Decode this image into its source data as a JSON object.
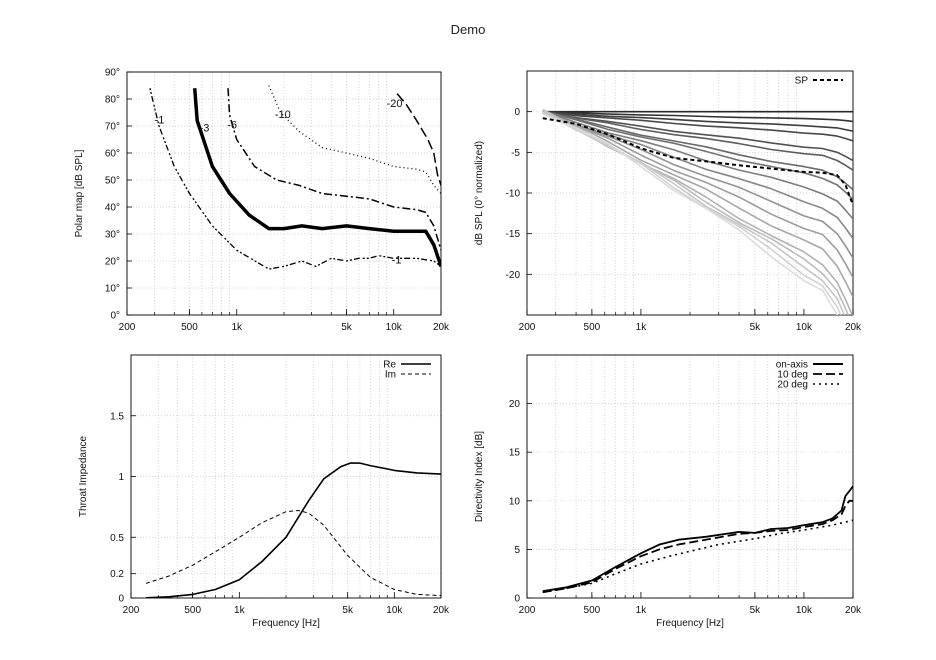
{
  "title": "Demo",
  "charts": [
    {
      "id": "polar-map",
      "type": "contour",
      "xscale": "log",
      "xlim": [
        200,
        20000
      ],
      "ylim": [
        0,
        90
      ],
      "xticks": [
        {
          "v": 200,
          "label": "200"
        },
        {
          "v": 500,
          "label": "500"
        },
        {
          "v": 1000,
          "label": "1k"
        },
        {
          "v": 5000,
          "label": "5k"
        },
        {
          "v": 10000,
          "label": "10k"
        },
        {
          "v": 20000,
          "label": "20k"
        }
      ],
      "yticks": [
        {
          "v": 0,
          "label": "0°"
        },
        {
          "v": 10,
          "label": "10°"
        },
        {
          "v": 20,
          "label": "20°"
        },
        {
          "v": 30,
          "label": "30°"
        },
        {
          "v": 40,
          "label": "40°"
        },
        {
          "v": 50,
          "label": "50°"
        },
        {
          "v": 60,
          "label": "60°"
        },
        {
          "v": 70,
          "label": "70°"
        },
        {
          "v": 80,
          "label": "80°"
        },
        {
          "v": 90,
          "label": "90°"
        }
      ],
      "xlabel": "",
      "ylabel": "Polar map [dB SPL]",
      "series": [
        {
          "name": "-1",
          "dash": "2,2,2,2,6,3",
          "width": 1.3,
          "color": "#000",
          "points": [
            [
              280,
              84
            ],
            [
              320,
              70
            ],
            [
              400,
              55
            ],
            [
              500,
              45
            ],
            [
              700,
              33
            ],
            [
              1000,
              24
            ],
            [
              1600,
              17
            ],
            [
              2000,
              18
            ],
            [
              2600,
              20
            ],
            [
              3200,
              18
            ],
            [
              4000,
              21
            ],
            [
              5000,
              20
            ],
            [
              6000,
              21
            ],
            [
              7000,
              21
            ],
            [
              8000,
              22
            ],
            [
              10000,
              21
            ],
            [
              14000,
              21
            ],
            [
              18000,
              20
            ],
            [
              20000,
              18
            ]
          ]
        },
        {
          "name": "-3",
          "dash": "",
          "width": 3.5,
          "color": "#000",
          "points": [
            [
              540,
              84
            ],
            [
              560,
              72
            ],
            [
              700,
              55
            ],
            [
              900,
              45
            ],
            [
              1200,
              37
            ],
            [
              1600,
              32
            ],
            [
              2000,
              32
            ],
            [
              2600,
              33
            ],
            [
              3500,
              32
            ],
            [
              5000,
              33
            ],
            [
              7000,
              32
            ],
            [
              10000,
              31
            ],
            [
              14000,
              31
            ],
            [
              16000,
              31
            ],
            [
              18000,
              26
            ],
            [
              20000,
              18
            ]
          ]
        },
        {
          "name": "-6",
          "dash": "8,3,2,3",
          "width": 1.5,
          "color": "#000",
          "points": [
            [
              880,
              84
            ],
            [
              900,
              74
            ],
            [
              1000,
              65
            ],
            [
              1300,
              55
            ],
            [
              1800,
              50
            ],
            [
              2500,
              48
            ],
            [
              3500,
              45
            ],
            [
              5000,
              44
            ],
            [
              7000,
              43
            ],
            [
              10000,
              40
            ],
            [
              14000,
              39
            ],
            [
              16000,
              38
            ],
            [
              18000,
              33
            ],
            [
              20000,
              24
            ]
          ]
        },
        {
          "name": "-10",
          "dash": "1,3",
          "width": 1.3,
          "color": "#000",
          "points": [
            [
              1600,
              85
            ],
            [
              1900,
              75
            ],
            [
              2500,
              68
            ],
            [
              3500,
              62
            ],
            [
              5000,
              60
            ],
            [
              7000,
              58
            ],
            [
              10000,
              55
            ],
            [
              14000,
              54
            ],
            [
              16000,
              53
            ],
            [
              18000,
              48
            ],
            [
              20000,
              45
            ]
          ]
        },
        {
          "name": "-20",
          "dash": "10,4",
          "width": 1.5,
          "color": "#000",
          "points": [
            [
              10500,
              82
            ],
            [
              12000,
              78
            ],
            [
              14000,
              72
            ],
            [
              16500,
              65
            ],
            [
              18000,
              60
            ],
            [
              19000,
              52
            ],
            [
              20000,
              48
            ]
          ]
        }
      ],
      "contour_labels": [
        {
          "text": "-1",
          "x": 300,
          "y": 71
        },
        {
          "text": "-3",
          "x": 580,
          "y": 68
        },
        {
          "text": "-6",
          "x": 870,
          "y": 69
        },
        {
          "text": "-10",
          "x": 1750,
          "y": 73
        },
        {
          "text": "-20",
          "x": 9000,
          "y": 77
        },
        {
          "text": "-1",
          "x": 9700,
          "y": 19
        }
      ]
    },
    {
      "id": "spl-normalized",
      "type": "line",
      "xscale": "log",
      "xlim": [
        200,
        20000
      ],
      "ylim": [
        -25,
        5
      ],
      "xticks": [
        {
          "v": 200,
          "label": "200"
        },
        {
          "v": 500,
          "label": "500"
        },
        {
          "v": 1000,
          "label": "1k"
        },
        {
          "v": 5000,
          "label": "5k"
        },
        {
          "v": 10000,
          "label": "10k"
        },
        {
          "v": 20000,
          "label": "20k"
        }
      ],
      "yticks": [
        {
          "v": 0,
          "label": "0"
        },
        {
          "v": -5,
          "label": "-5"
        },
        {
          "v": -10,
          "label": "-10"
        },
        {
          "v": -15,
          "label": "-15"
        },
        {
          "v": -20,
          "label": "-20"
        }
      ],
      "xlabel": "",
      "ylabel": "dB SPL (0° normalized)",
      "legend": [
        {
          "name": "SP",
          "dash": "4,3",
          "width": 2
        }
      ],
      "family": {
        "count": 18,
        "freqs": [
          250,
          400,
          630,
          1000,
          1600,
          2500,
          4000,
          6300,
          10000,
          13000,
          16000,
          18000,
          20000
        ],
        "final_values": [
          0,
          -1,
          -2,
          -3,
          -5,
          -6,
          -8,
          -9,
          -11,
          -13,
          -15,
          -17,
          -19,
          -21,
          -22,
          -23,
          -24,
          -25
        ]
      },
      "sp_series": {
        "name": "SP",
        "points": [
          [
            250,
            -0.8
          ],
          [
            400,
            -1.5
          ],
          [
            630,
            -2.8
          ],
          [
            1000,
            -4.5
          ],
          [
            1600,
            -5.7
          ],
          [
            2500,
            -6.1
          ],
          [
            4000,
            -6.6
          ],
          [
            6300,
            -7
          ],
          [
            10000,
            -7.4
          ],
          [
            13000,
            -7.5
          ],
          [
            16000,
            -7.8
          ],
          [
            18000,
            -9
          ],
          [
            20000,
            -11.5
          ]
        ]
      }
    },
    {
      "id": "throat-impedance",
      "type": "line",
      "xscale": "log",
      "xlim": [
        200,
        20000
      ],
      "ylim": [
        0,
        2
      ],
      "xticks": [
        {
          "v": 200,
          "label": "200"
        },
        {
          "v": 500,
          "label": "500"
        },
        {
          "v": 1000,
          "label": "1k"
        },
        {
          "v": 5000,
          "label": "5k"
        },
        {
          "v": 10000,
          "label": "10k"
        },
        {
          "v": 20000,
          "label": "20k"
        }
      ],
      "yticks": [
        {
          "v": 0,
          "label": "0"
        },
        {
          "v": 0.2,
          "label": "0.2"
        },
        {
          "v": 0.5,
          "label": "0.5"
        },
        {
          "v": 1,
          "label": "1"
        },
        {
          "v": 1.5,
          "label": "1.5"
        }
      ],
      "xlabel": "Frequency [Hz]",
      "ylabel": "Throat Impedance",
      "legend": [
        {
          "name": "Re",
          "dash": "",
          "width": 1.6
        },
        {
          "name": "Im",
          "dash": "4,3",
          "width": 1
        }
      ],
      "series": [
        {
          "name": "Re",
          "dash": "",
          "width": 1.6,
          "color": "#000",
          "points": [
            [
              250,
              0.002
            ],
            [
              350,
              0.01
            ],
            [
              500,
              0.03
            ],
            [
              700,
              0.07
            ],
            [
              1000,
              0.15
            ],
            [
              1400,
              0.3
            ],
            [
              2000,
              0.5
            ],
            [
              2800,
              0.8
            ],
            [
              3500,
              0.98
            ],
            [
              4500,
              1.08
            ],
            [
              5200,
              1.11
            ],
            [
              6000,
              1.11
            ],
            [
              7000,
              1.09
            ],
            [
              10000,
              1.05
            ],
            [
              14000,
              1.03
            ],
            [
              20000,
              1.02
            ]
          ]
        },
        {
          "name": "Im",
          "dash": "4,3",
          "width": 1,
          "color": "#000",
          "points": [
            [
              250,
              0.12
            ],
            [
              350,
              0.18
            ],
            [
              500,
              0.27
            ],
            [
              700,
              0.38
            ],
            [
              1000,
              0.5
            ],
            [
              1400,
              0.62
            ],
            [
              2000,
              0.71
            ],
            [
              2400,
              0.72
            ],
            [
              2800,
              0.7
            ],
            [
              3500,
              0.6
            ],
            [
              5000,
              0.35
            ],
            [
              7000,
              0.17
            ],
            [
              10000,
              0.07
            ],
            [
              14000,
              0.03
            ],
            [
              20000,
              0.02
            ]
          ]
        }
      ]
    },
    {
      "id": "directivity-index",
      "type": "line",
      "xscale": "log",
      "xlim": [
        200,
        20000
      ],
      "ylim": [
        0,
        25
      ],
      "xticks": [
        {
          "v": 200,
          "label": "200"
        },
        {
          "v": 500,
          "label": "500"
        },
        {
          "v": 1000,
          "label": "1k"
        },
        {
          "v": 5000,
          "label": "5k"
        },
        {
          "v": 10000,
          "label": "10k"
        },
        {
          "v": 20000,
          "label": "20k"
        }
      ],
      "yticks": [
        {
          "v": 0,
          "label": "0"
        },
        {
          "v": 5,
          "label": "5"
        },
        {
          "v": 10,
          "label": "10"
        },
        {
          "v": 15,
          "label": "15"
        },
        {
          "v": 20,
          "label": "20"
        }
      ],
      "xlabel": "Frequency [Hz]",
      "ylabel": "Directivity Index [dB]",
      "legend": [
        {
          "name": "on-axis",
          "dash": "",
          "width": 2
        },
        {
          "name": "10 deg",
          "dash": "9,4",
          "width": 1.8
        },
        {
          "name": "20 deg",
          "dash": "2,4",
          "width": 1.6
        }
      ],
      "series": [
        {
          "name": "on-axis",
          "dash": "",
          "width": 1.8,
          "color": "#000",
          "points": [
            [
              250,
              0.7
            ],
            [
              350,
              1.1
            ],
            [
              500,
              1.8
            ],
            [
              700,
              3.2
            ],
            [
              1000,
              4.6
            ],
            [
              1300,
              5.5
            ],
            [
              1700,
              6
            ],
            [
              2500,
              6.3
            ],
            [
              4000,
              6.8
            ],
            [
              5000,
              6.7
            ],
            [
              6300,
              7.1
            ],
            [
              8000,
              7.2
            ],
            [
              10000,
              7.5
            ],
            [
              13000,
              7.8
            ],
            [
              15000,
              8.2
            ],
            [
              17000,
              9
            ],
            [
              18000,
              10.5
            ],
            [
              19000,
              11
            ],
            [
              20000,
              11.5
            ]
          ]
        },
        {
          "name": "10 deg",
          "dash": "9,4",
          "width": 1.8,
          "color": "#000",
          "points": [
            [
              250,
              0.6
            ],
            [
              350,
              1
            ],
            [
              500,
              1.6
            ],
            [
              700,
              3
            ],
            [
              1000,
              4.3
            ],
            [
              1300,
              5
            ],
            [
              1700,
              5.5
            ],
            [
              2500,
              6
            ],
            [
              4000,
              6.6
            ],
            [
              5000,
              6.7
            ],
            [
              6300,
              6.9
            ],
            [
              8000,
              7
            ],
            [
              10000,
              7.3
            ],
            [
              13000,
              7.6
            ],
            [
              15000,
              8
            ],
            [
              17000,
              8.6
            ],
            [
              18000,
              9.5
            ],
            [
              19000,
              10
            ],
            [
              20000,
              10
            ]
          ]
        },
        {
          "name": "20 deg",
          "dash": "2,4",
          "width": 1.6,
          "color": "#000",
          "points": [
            [
              250,
              0.6
            ],
            [
              350,
              1
            ],
            [
              500,
              1.5
            ],
            [
              700,
              2.5
            ],
            [
              1000,
              3.5
            ],
            [
              1500,
              4.3
            ],
            [
              2000,
              4.8
            ],
            [
              3000,
              5.5
            ],
            [
              5000,
              6.1
            ],
            [
              7000,
              6.6
            ],
            [
              10000,
              7
            ],
            [
              15000,
              7.5
            ],
            [
              20000,
              8
            ]
          ]
        }
      ]
    }
  ]
}
